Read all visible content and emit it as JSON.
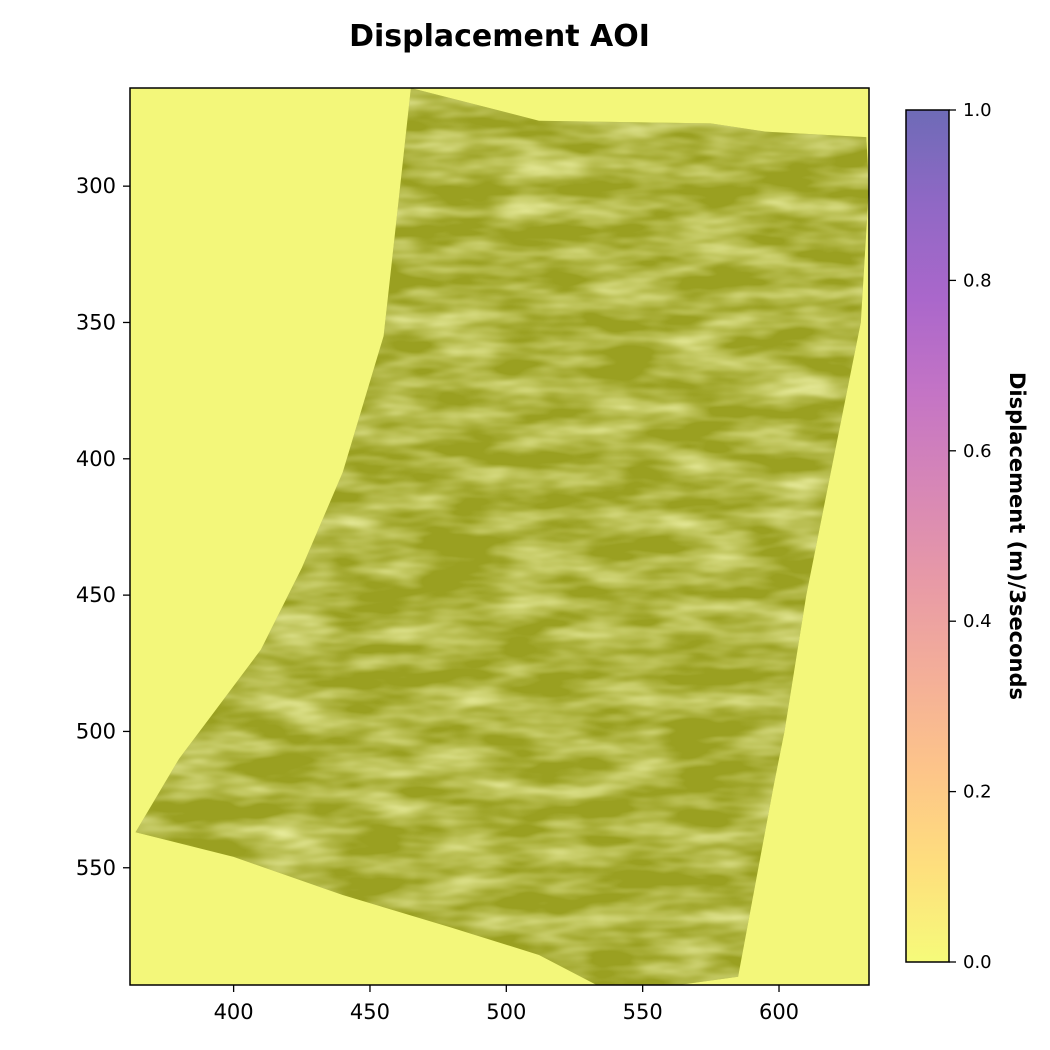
{
  "chart_data": {
    "type": "heatmap",
    "title": "Displacement AOI",
    "xlabel": "",
    "ylabel": "",
    "xlim": [
      362,
      633
    ],
    "ylim": [
      593,
      264
    ],
    "x_ticks": [
      400,
      450,
      500,
      550,
      600
    ],
    "y_ticks": [
      300,
      350,
      400,
      450,
      500,
      550
    ],
    "data_footprint": {
      "description_free": true,
      "boundary": [
        [
          465,
          264
        ],
        [
          512,
          276
        ],
        [
          575,
          277
        ],
        [
          595,
          280
        ],
        [
          632,
          282
        ],
        [
          633,
          300
        ],
        [
          630,
          350
        ],
        [
          620,
          400
        ],
        [
          610,
          450
        ],
        [
          602,
          500
        ],
        [
          598,
          520
        ],
        [
          585,
          590
        ],
        [
          556,
          594
        ],
        [
          535,
          594
        ],
        [
          512,
          582
        ],
        [
          480,
          572
        ],
        [
          440,
          560
        ],
        [
          400,
          546
        ],
        [
          364,
          537
        ],
        [
          380,
          510
        ],
        [
          410,
          470
        ],
        [
          425,
          440
        ],
        [
          440,
          405
        ],
        [
          455,
          355
        ],
        [
          460,
          310
        ],
        [
          465,
          264
        ]
      ],
      "value_range": [
        0.0,
        0.05
      ]
    },
    "colorbar": {
      "label": "Displacement (m)/3seconds",
      "range": [
        0.0,
        1.0
      ],
      "ticks": [
        0.0,
        0.2,
        0.4,
        0.6,
        0.8,
        1.0
      ],
      "tick_labels": [
        "0.0",
        "0.2",
        "0.4",
        "0.6",
        "0.8",
        "1.0"
      ],
      "colormap": "plasma_r",
      "alpha": 0.6
    },
    "grid": false,
    "colors": {
      "background_field": "#f3f77a",
      "footprint_dark": "#9aa021",
      "footprint_light": "#d6dd5c",
      "cmap_stops": [
        "#f0f921",
        "#fdca26",
        "#fb9f3a",
        "#ed7953",
        "#d8576b",
        "#bd3786",
        "#9c179e",
        "#7201a8",
        "#46039f",
        "#0d0887"
      ]
    }
  }
}
